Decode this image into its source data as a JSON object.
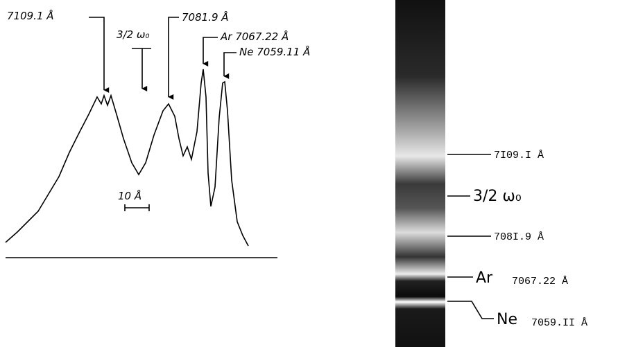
{
  "spectrum": {
    "labels": [
      "7109.1 Å",
      "3/2 ω₀",
      "7081.9 Å",
      "Ar 7067.22 Å",
      "Ne 7059.11 Å"
    ],
    "scale": "10 Å"
  },
  "spectrogram": {
    "labels": [
      "7I09.I Å",
      "3/2 ω₀",
      "708I.9 Å"
    ],
    "ar": {
      "element": "Ar",
      "wavelength": "7067.22 Å"
    },
    "ne": {
      "element": "Ne",
      "wavelength": "7059.II Å"
    }
  }
}
